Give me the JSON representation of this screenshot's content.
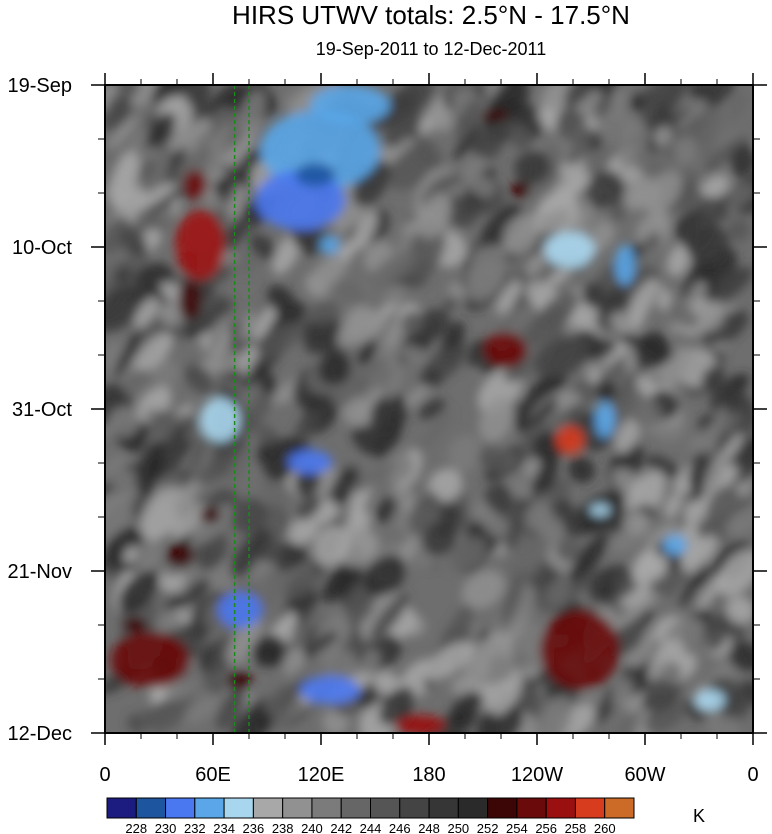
{
  "chart_data": {
    "type": "heatmap",
    "title": "HIRS UTWV totals: 2.5°N - 17.5°N",
    "subtitle": "19-Sep-2011 to 12-Dec-2011",
    "x_ticks": [
      "0",
      "60E",
      "120E",
      "180",
      "120W",
      "60W",
      "0"
    ],
    "x_range": [
      0,
      360
    ],
    "y_ticks": [
      "19-Sep",
      "10-Oct",
      "31-Oct",
      "21-Nov",
      "12-Dec"
    ],
    "y_range": [
      "2011-09-19",
      "2011-12-12"
    ],
    "colorbar": {
      "labels": [
        "228",
        "230",
        "232",
        "234",
        "236",
        "238",
        "240",
        "242",
        "244",
        "246",
        "248",
        "250",
        "252",
        "254",
        "256",
        "258",
        "260"
      ],
      "colors": [
        "#1b1b80",
        "#1d559e",
        "#4a78f0",
        "#5aa6e8",
        "#a8d6ee",
        "#a8a8a8",
        "#919191",
        "#7b7b7b",
        "#666666",
        "#555555",
        "#444444",
        "#363636",
        "#2a2a2a",
        "#3c0606",
        "#6a0a0a",
        "#9a1010",
        "#d83c1e",
        "#cc6a28"
      ],
      "units": "K",
      "orientation": "horizontal"
    },
    "reference_lines": [
      {
        "lon": 72
      },
      {
        "lon": 80
      }
    ]
  }
}
